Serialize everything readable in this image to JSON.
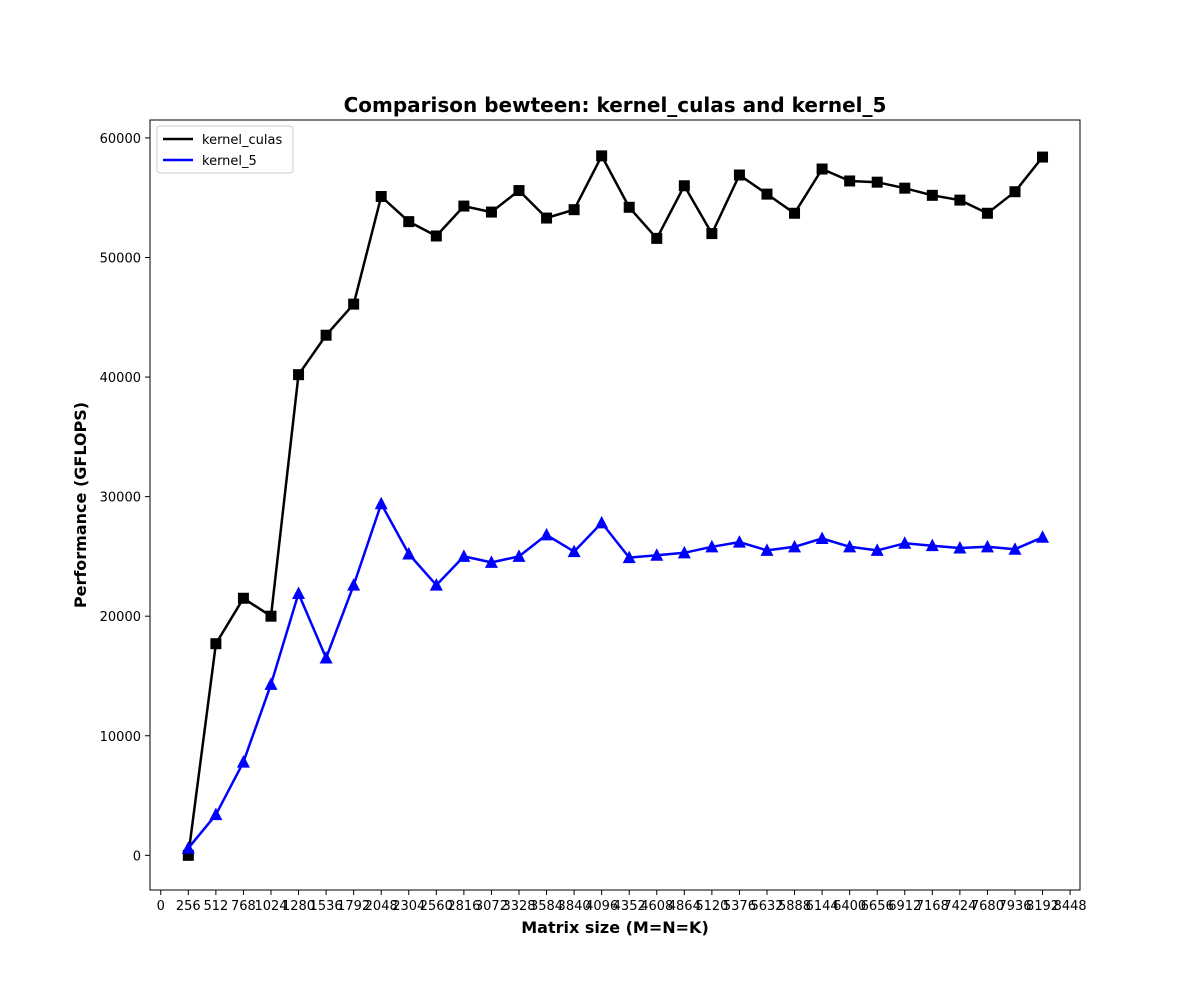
{
  "chart_data": {
    "type": "line",
    "title": "Comparison bewteen: kernel_culas and kernel_5",
    "xlabel": "Matrix size (M=N=K)",
    "ylabel": "Performance (GFLOPS)",
    "x": [
      256,
      512,
      768,
      1024,
      1280,
      1536,
      1792,
      2048,
      2304,
      2560,
      2816,
      3072,
      3328,
      3584,
      3840,
      4096,
      4352,
      4608,
      4864,
      5120,
      5376,
      5632,
      5888,
      6144,
      6400,
      6656,
      6912,
      7168,
      7424,
      7680,
      7936,
      8192
    ],
    "x_ticks": [
      0,
      256,
      512,
      768,
      1024,
      1280,
      1536,
      1792,
      2048,
      2304,
      2560,
      2816,
      3072,
      3328,
      3584,
      3840,
      4096,
      4352,
      4608,
      4864,
      5120,
      5376,
      5632,
      5888,
      6144,
      6400,
      6656,
      6912,
      7168,
      7424,
      7680,
      7936,
      8192,
      8448
    ],
    "y_ticks": [
      0,
      10000,
      20000,
      30000,
      40000,
      50000,
      60000
    ],
    "xlim": [
      -100,
      8540
    ],
    "ylim": [
      -2900,
      61500
    ],
    "grid": false,
    "legend_position": "top-left",
    "series": [
      {
        "name": "kernel_culas",
        "color": "#000000",
        "marker": "square",
        "values": [
          0,
          17700,
          21500,
          20000,
          40200,
          43500,
          46100,
          55100,
          53000,
          51800,
          54300,
          53800,
          55600,
          53300,
          54000,
          58500,
          54200,
          51600,
          56000,
          52000,
          56900,
          55300,
          53700,
          57400,
          56400,
          56300,
          55800,
          55200,
          54800,
          53700,
          55500,
          58400
        ]
      },
      {
        "name": "kernel_5",
        "color": "#0000ff",
        "marker": "triangle",
        "values": [
          600,
          3400,
          7800,
          14300,
          21900,
          16500,
          22600,
          29400,
          25200,
          22600,
          25000,
          24500,
          25000,
          26800,
          25400,
          27800,
          24900,
          25100,
          25300,
          25800,
          26200,
          25500,
          25800,
          26500,
          25800,
          25500,
          26100,
          25900,
          25700,
          25800,
          25600,
          26600
        ]
      }
    ]
  }
}
